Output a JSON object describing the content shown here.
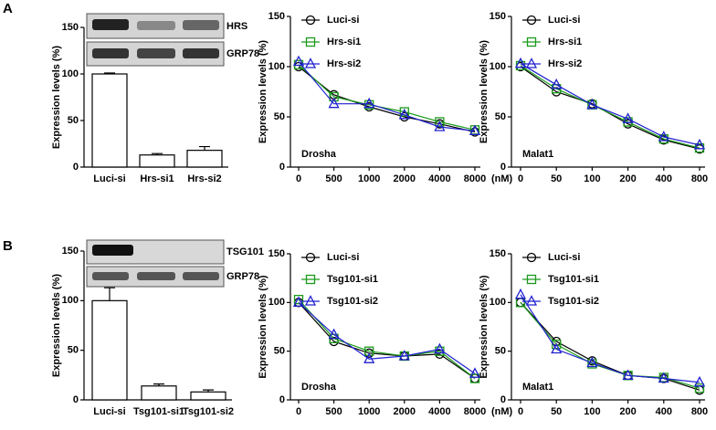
{
  "panel_labels": [
    "A",
    "B"
  ],
  "chart_data": [
    {
      "type": "bar",
      "y_label": "Expression levels (%)",
      "categories": [
        "Luci-si",
        "Hrs-si1",
        "Hrs-si2"
      ],
      "values": [
        100,
        13,
        18
      ],
      "errors": [
        1,
        1.5,
        4
      ],
      "color": "#ffffff",
      "ylim": [
        0,
        150
      ],
      "yticks": [
        0,
        50,
        100,
        150
      ],
      "annotations": [
        "HRS",
        "GRP78"
      ]
    },
    {
      "type": "line",
      "y_label": "Expression levels (%)",
      "x_label": "(nM)",
      "categories": [
        "0",
        "500",
        "1000",
        "2000",
        "4000",
        "8000"
      ],
      "ylim": [
        0,
        150
      ],
      "yticks": [
        0,
        50,
        100,
        150
      ],
      "annotations": [
        "Drosha"
      ],
      "series": [
        {
          "name": "Luci-si",
          "color": "#000000",
          "marker": "circle",
          "values": [
            100,
            72,
            60,
            50,
            43,
            35
          ]
        },
        {
          "name": "Hrs-si1",
          "color": "#1a9a1a",
          "marker": "square",
          "values": [
            102,
            70,
            62,
            55,
            45,
            37
          ]
        },
        {
          "name": "Hrs-si2",
          "color": "#2020d0",
          "marker": "triangle",
          "values": [
            105,
            63,
            63,
            52,
            40,
            36
          ]
        }
      ]
    },
    {
      "type": "line",
      "y_label": "Expression levels (%)",
      "x_label": "(nM)",
      "categories": [
        "0",
        "50",
        "100",
        "200",
        "400",
        "800"
      ],
      "ylim": [
        0,
        150
      ],
      "yticks": [
        0,
        50,
        100,
        150
      ],
      "annotations": [
        "Malat1"
      ],
      "series": [
        {
          "name": "Luci-si",
          "color": "#000000",
          "marker": "circle",
          "values": [
            100,
            75,
            63,
            43,
            27,
            18
          ]
        },
        {
          "name": "Hrs-si1",
          "color": "#1a9a1a",
          "marker": "square",
          "values": [
            101,
            78,
            62,
            45,
            28,
            19
          ]
        },
        {
          "name": "Hrs-si2",
          "color": "#2020d0",
          "marker": "triangle",
          "values": [
            103,
            82,
            62,
            48,
            30,
            22
          ]
        }
      ]
    },
    {
      "type": "bar",
      "y_label": "Expression levels (%)",
      "categories": [
        "Luci-si",
        "Tsg101-si1",
        "Tsg101-si2"
      ],
      "values": [
        100,
        14,
        8
      ],
      "errors": [
        13,
        2,
        2
      ],
      "color": "#ffffff",
      "ylim": [
        0,
        150
      ],
      "yticks": [
        0,
        50,
        100,
        150
      ],
      "annotations": [
        "TSG101",
        "GRP78"
      ]
    },
    {
      "type": "line",
      "y_label": "Expression levels (%)",
      "x_label": "(nM)",
      "categories": [
        "0",
        "500",
        "1000",
        "2000",
        "4000",
        "8000"
      ],
      "ylim": [
        0,
        150
      ],
      "yticks": [
        0,
        50,
        100,
        150
      ],
      "annotations": [
        "Drosha"
      ],
      "series": [
        {
          "name": "Luci-si",
          "color": "#000000",
          "marker": "circle",
          "values": [
            100,
            60,
            48,
            45,
            47,
            22
          ]
        },
        {
          "name": "Tsg101-si1",
          "color": "#1a9a1a",
          "marker": "square",
          "values": [
            103,
            63,
            50,
            45,
            50,
            22
          ]
        },
        {
          "name": "Tsg101-si2",
          "color": "#2020d0",
          "marker": "triangle",
          "values": [
            100,
            67,
            42,
            45,
            52,
            27
          ]
        }
      ]
    },
    {
      "type": "line",
      "y_label": "Expression levels (%)",
      "x_label": "(nM)",
      "categories": [
        "0",
        "50",
        "100",
        "200",
        "400",
        "800"
      ],
      "ylim": [
        0,
        150
      ],
      "yticks": [
        0,
        50,
        100,
        150
      ],
      "annotations": [
        "Malat1"
      ],
      "series": [
        {
          "name": "Luci-si",
          "color": "#000000",
          "marker": "circle",
          "values": [
            100,
            60,
            40,
            25,
            22,
            10
          ]
        },
        {
          "name": "Tsg101-si1",
          "color": "#1a9a1a",
          "marker": "square",
          "values": [
            100,
            57,
            37,
            25,
            23,
            12
          ]
        },
        {
          "name": "Tsg101-si2",
          "color": "#2020d0",
          "marker": "triangle",
          "values": [
            108,
            52,
            38,
            25,
            22,
            18
          ]
        }
      ]
    }
  ]
}
